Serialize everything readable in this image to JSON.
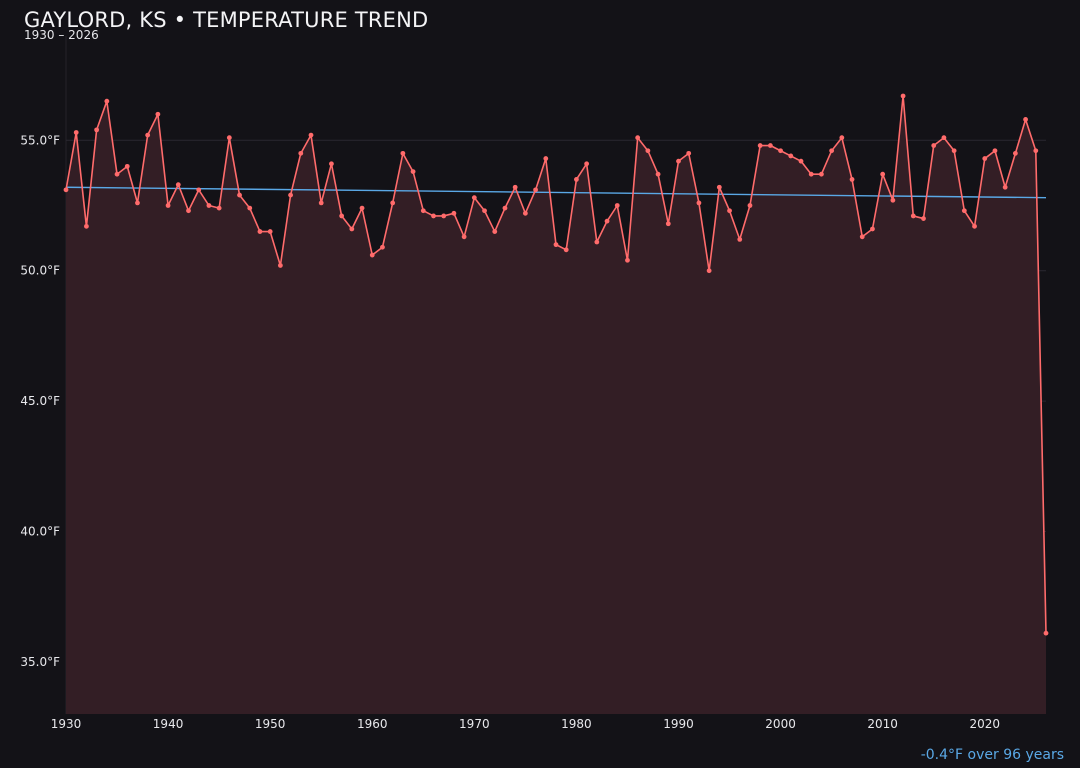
{
  "title": "GAYLORD, KS • TEMPERATURE TREND",
  "subtitle": "1930 – 2026",
  "trend_note": "-0.4°F over 96 years",
  "colors": {
    "background": "#131217",
    "line": "#ff6b6b",
    "fill": "#331e25",
    "trend": "#5aa8e6",
    "grid": "#2a2730"
  },
  "chart_data": {
    "type": "line",
    "title": "GAYLORD, KS • TEMPERATURE TREND",
    "xlabel": "",
    "ylabel": "",
    "xlim": [
      1930,
      2026
    ],
    "ylim": [
      33,
      59
    ],
    "grid": true,
    "x_ticks": [
      1930,
      1940,
      1950,
      1960,
      1970,
      1980,
      1990,
      2000,
      2010,
      2020
    ],
    "y_ticks": [
      35.0,
      40.0,
      45.0,
      50.0,
      55.0
    ],
    "y_tick_labels": [
      "35.0°F",
      "40.0°F",
      "45.0°F",
      "50.0°F",
      "55.0°F"
    ],
    "x": [
      1930,
      1931,
      1932,
      1933,
      1934,
      1935,
      1936,
      1937,
      1938,
      1939,
      1940,
      1941,
      1942,
      1943,
      1944,
      1945,
      1946,
      1947,
      1948,
      1949,
      1950,
      1951,
      1952,
      1953,
      1954,
      1955,
      1956,
      1957,
      1958,
      1959,
      1960,
      1961,
      1962,
      1963,
      1964,
      1965,
      1966,
      1967,
      1968,
      1969,
      1970,
      1971,
      1972,
      1973,
      1974,
      1975,
      1976,
      1977,
      1978,
      1979,
      1980,
      1981,
      1982,
      1983,
      1984,
      1985,
      1986,
      1987,
      1988,
      1989,
      1990,
      1991,
      1992,
      1993,
      1994,
      1995,
      1996,
      1997,
      1998,
      1999,
      2000,
      2001,
      2002,
      2003,
      2004,
      2005,
      2006,
      2007,
      2008,
      2009,
      2010,
      2011,
      2012,
      2013,
      2014,
      2015,
      2016,
      2017,
      2018,
      2019,
      2020,
      2021,
      2022,
      2023,
      2024,
      2025,
      2026
    ],
    "series": [
      {
        "values": [
          53.1,
          55.3,
          51.7,
          55.4,
          56.5,
          53.7,
          54.0,
          52.6,
          55.2,
          56.0,
          52.5,
          53.3,
          52.3,
          53.1,
          52.5,
          52.4,
          55.1,
          52.9,
          52.4,
          51.5,
          51.5,
          50.2,
          52.9,
          54.5,
          55.2,
          52.6,
          54.1,
          52.1,
          51.6,
          52.4,
          50.6,
          50.9,
          52.6,
          54.5,
          53.8,
          52.3,
          52.1,
          52.1,
          52.2,
          51.3,
          52.8,
          52.3,
          51.5,
          52.4,
          53.2,
          52.2,
          53.1,
          54.3,
          51.0,
          50.8,
          53.5,
          54.1,
          51.1,
          51.9,
          52.5,
          50.4,
          55.1,
          54.6,
          53.7,
          51.8,
          54.2,
          54.5,
          52.6,
          50.0,
          53.2,
          52.3,
          51.2,
          52.5,
          54.8,
          54.8,
          54.6,
          54.4,
          54.2,
          53.7,
          53.7,
          54.6,
          55.1,
          53.5,
          51.3,
          51.6,
          53.7,
          52.7,
          56.7,
          52.1,
          52.0,
          54.8,
          55.1,
          54.6,
          52.3,
          51.7,
          54.3,
          54.6,
          53.2,
          54.5,
          55.8,
          54.6,
          36.1
        ]
      }
    ],
    "trend_line": {
      "start": [
        1930,
        53.2
      ],
      "end": [
        2026,
        52.8
      ]
    }
  }
}
